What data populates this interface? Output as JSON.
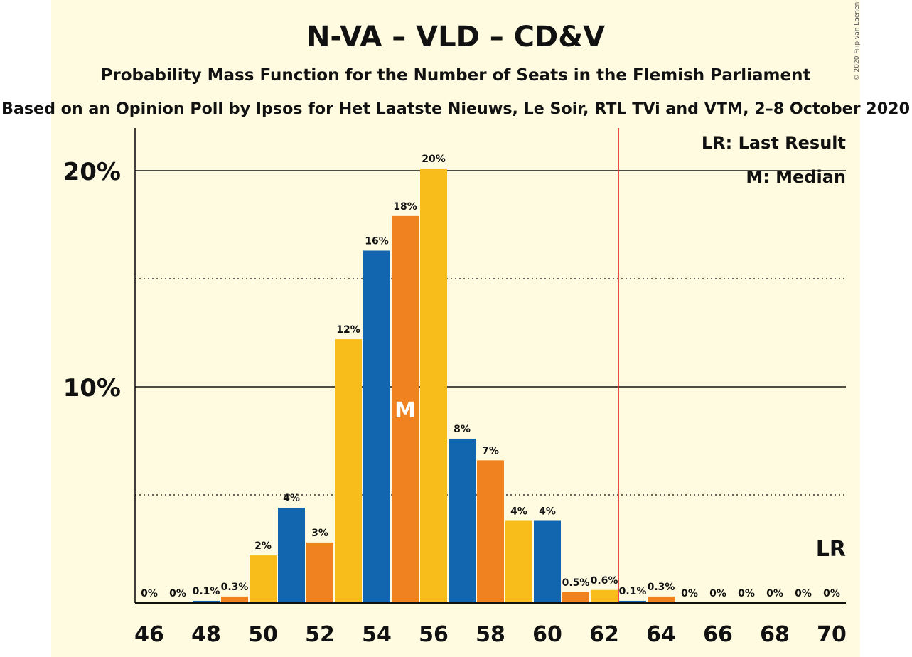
{
  "chart_data": {
    "type": "bar",
    "title": "N-VA – VLD – CD&V",
    "subtitle": "Probability Mass Function for the Number of Seats in the Flemish Parliament",
    "source": "Based on an Opinion Poll by Ipsos for Het Laatste Nieuws, Le Soir, RTL TVi and VTM, 2–8 October 2020",
    "copyright": "© 2020 Filip van Laenen",
    "x": [
      46,
      47,
      48,
      49,
      50,
      51,
      52,
      53,
      54,
      55,
      56,
      57,
      58,
      59,
      60,
      61,
      62,
      63,
      64,
      65,
      66,
      67,
      68,
      69,
      70
    ],
    "values": [
      0,
      0,
      0.1,
      0.3,
      2.2,
      4.4,
      2.8,
      12.2,
      16.3,
      17.9,
      20.1,
      7.6,
      6.6,
      3.8,
      3.8,
      0.5,
      0.6,
      0.1,
      0.3,
      0,
      0,
      0,
      0,
      0,
      0
    ],
    "data_labels": [
      "0%",
      "0%",
      "0.1%",
      "0.3%",
      "2%",
      "4%",
      "3%",
      "12%",
      "16%",
      "18%",
      "20%",
      "8%",
      "7%",
      "4%",
      "4%",
      "0.5%",
      "0.6%",
      "0.1%",
      "0.3%",
      "0%",
      "0%",
      "0%",
      "0%",
      "0%",
      "0%"
    ],
    "xticks": [
      46,
      48,
      50,
      52,
      54,
      56,
      58,
      60,
      62,
      64,
      66,
      68,
      70
    ],
    "yticks": [
      {
        "value": 10,
        "label": "10%"
      },
      {
        "value": 20,
        "label": "20%"
      }
    ],
    "minor_gridlines": [
      5,
      15
    ],
    "ylim": [
      0,
      22
    ],
    "xlim": [
      45.5,
      70.5
    ],
    "median": {
      "x": 55,
      "label": "M"
    },
    "last_result": {
      "x": 62.5,
      "label": "LR",
      "color": "#e81c1c"
    },
    "legend": {
      "position": "top-right",
      "items": [
        "LR: Last Result",
        "M: Median"
      ]
    },
    "colors": [
      "#f0831f",
      "#f8bc1b",
      "#1266b0"
    ],
    "background": "#fffbe0"
  }
}
